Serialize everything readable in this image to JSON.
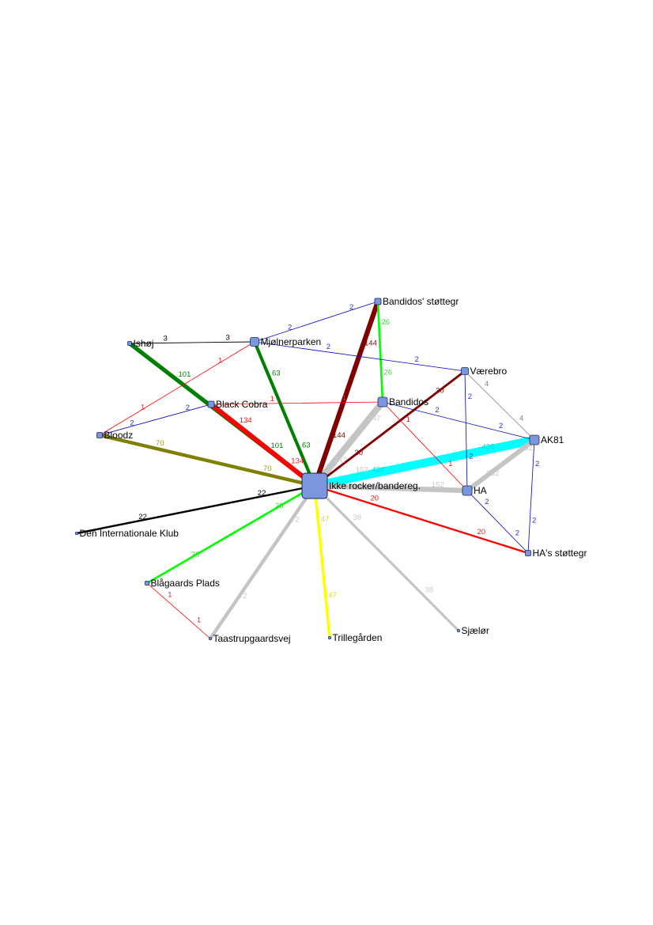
{
  "diagram": {
    "type": "network",
    "node_color": "#7b96dc",
    "nodes": [
      {
        "id": "ikke",
        "label": "Ikke rocker/bandereg."
      },
      {
        "id": "bst",
        "label": "Bandidos' støttegr"
      },
      {
        "id": "mjol",
        "label": "Mjølnerparken"
      },
      {
        "id": "ishoj",
        "label": "Ishøj"
      },
      {
        "id": "vaer",
        "label": "Værebro"
      },
      {
        "id": "bc",
        "label": "Black Cobra"
      },
      {
        "id": "band",
        "label": "Bandidos"
      },
      {
        "id": "bloodz",
        "label": "Bloodz"
      },
      {
        "id": "ak81",
        "label": "AK81"
      },
      {
        "id": "ha",
        "label": "HA"
      },
      {
        "id": "hast",
        "label": "HA's støttegr"
      },
      {
        "id": "dik",
        "label": "Den Internationale Klub"
      },
      {
        "id": "blag",
        "label": "Blågaards Plads"
      },
      {
        "id": "taas",
        "label": "Taastrupgaardsvej"
      },
      {
        "id": "trille",
        "label": "Trillegården"
      },
      {
        "id": "sjael",
        "label": "Sjælør"
      }
    ],
    "edges": [
      {
        "source": "ikke",
        "target": "ak81",
        "weight": 426,
        "color": "#00ffff",
        "label_color": "#00d8d8"
      },
      {
        "source": "ikke",
        "target": "band",
        "weight": 247,
        "color": "#c4c4c4",
        "label_color": "#d0d0d0"
      },
      {
        "source": "ikke",
        "target": "ha",
        "weight": 152,
        "color": "#c4c4c4",
        "label_color": "#c8c8c8"
      },
      {
        "source": "ak81",
        "target": "ha",
        "weight": 132,
        "color": "#c4c4c4",
        "label_color": "#c8c8c8"
      },
      {
        "source": "ikke",
        "target": "bst",
        "weight": 144,
        "color": "#800000",
        "label_color": "#800000"
      },
      {
        "source": "ishoj",
        "target": "ikke",
        "weight": 101,
        "color": "#008000",
        "label_color": "#008000"
      },
      {
        "source": "bc",
        "target": "ikke",
        "weight": 134,
        "color": "#ff0000",
        "label_color": "#e02020"
      },
      {
        "source": "mjol",
        "target": "ikke",
        "weight": 63,
        "color": "#008000",
        "label_color": "#008000"
      },
      {
        "source": "bloodz",
        "target": "ikke",
        "weight": 70,
        "color": "#808000",
        "label_color": "#a0a000"
      },
      {
        "source": "ikke",
        "target": "vaer",
        "weight": 30,
        "color": "#800000",
        "label_color": "#800000"
      },
      {
        "source": "ikke",
        "target": "hast",
        "weight": 20,
        "color": "#ff0000",
        "label_color": "#e02020"
      },
      {
        "source": "dik",
        "target": "ikke",
        "weight": 22,
        "color": "#000000",
        "label_color": "#000000"
      },
      {
        "source": "blag",
        "target": "ikke",
        "weight": 26,
        "color": "#00ff00",
        "label_color": "#40d040"
      },
      {
        "source": "taas",
        "target": "ikke",
        "weight": 72,
        "color": "#c4c4c4",
        "label_color": "#c8c8c8"
      },
      {
        "source": "ikke",
        "target": "trille",
        "weight": 47,
        "color": "#ffff00",
        "label_color": "#e0e000"
      },
      {
        "source": "ikke",
        "target": "sjael",
        "weight": 38,
        "color": "#c4c4c4",
        "label_color": "#c8c8c8"
      },
      {
        "source": "bst",
        "target": "band",
        "weight": 26,
        "color": "#00ff00",
        "label_color": "#40d040"
      },
      {
        "source": "mjol",
        "target": "bst",
        "weight": 2,
        "color": "#0000c0",
        "label_color": "#3030c0"
      },
      {
        "source": "ishoj",
        "target": "mjol",
        "weight": 3,
        "color": "#000000",
        "label_color": "#000000"
      },
      {
        "source": "bloodz",
        "target": "mjol",
        "weight": 1,
        "color": "#ff0000",
        "label_color": "#e02020"
      },
      {
        "source": "mjol",
        "target": "vaer",
        "weight": 2,
        "color": "#0000c0",
        "label_color": "#3030c0"
      },
      {
        "source": "bloodz",
        "target": "bc",
        "weight": 2,
        "color": "#0000c0",
        "label_color": "#3030c0"
      },
      {
        "source": "bc",
        "target": "band",
        "weight": 1,
        "color": "#ff0000",
        "label_color": "#e02020"
      },
      {
        "source": "band",
        "target": "ak81",
        "weight": 2,
        "color": "#0000c0",
        "label_color": "#3030c0"
      },
      {
        "source": "band",
        "target": "ha",
        "weight": 1,
        "color": "#ff0000",
        "label_color": "#e02020"
      },
      {
        "source": "vaer",
        "target": "ha",
        "weight": 2,
        "color": "#0000c0",
        "label_color": "#3030c0"
      },
      {
        "source": "vaer",
        "target": "ak81",
        "weight": 4,
        "color": "#a0a0a0",
        "label_color": "#808080"
      },
      {
        "source": "ak81",
        "target": "hast",
        "weight": 2,
        "color": "#0000c0",
        "label_color": "#3030c0"
      },
      {
        "source": "ha",
        "target": "hast",
        "weight": 2,
        "color": "#0000c0",
        "label_color": "#3030c0"
      },
      {
        "source": "blag",
        "target": "taas",
        "weight": 1,
        "color": "#ff0000",
        "label_color": "#e02020"
      }
    ]
  }
}
